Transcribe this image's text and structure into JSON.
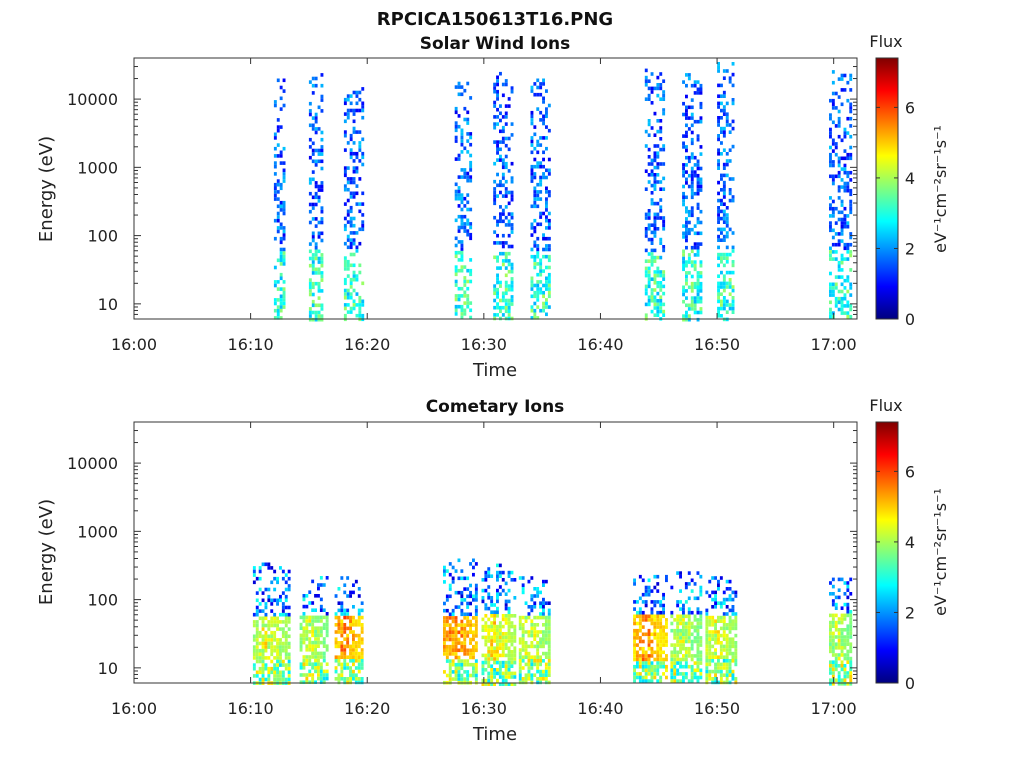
{
  "figure": {
    "title": "RPCICA150613T16.PNG"
  },
  "colorscale": [
    "#00007f",
    "#0000ff",
    "#007fff",
    "#00ffff",
    "#7fff7f",
    "#ffff00",
    "#ff7f00",
    "#ff0000",
    "#7f0000"
  ],
  "chart_data": [
    {
      "type": "heatmap",
      "title": "Solar Wind Ions",
      "xlabel": "Time",
      "ylabel": "Energy (eV)",
      "x_ticks": [
        "16:00",
        "16:10",
        "16:20",
        "16:30",
        "16:40",
        "16:50",
        "17:00"
      ],
      "x_range_minutes": [
        0,
        62
      ],
      "y_scale": "log",
      "y_ticks": [
        "10",
        "100",
        "1000",
        "10000"
      ],
      "y_range": [
        6,
        40000
      ],
      "colorbar": {
        "title": "Flux",
        "label": "eV⁻¹cm⁻²sr⁻¹s⁻¹",
        "ticks": [
          "0",
          "2",
          "4",
          "6"
        ],
        "range": [
          0,
          7.4
        ]
      },
      "bursts": [
        {
          "start_min": 12.0,
          "end_min": 13.0,
          "energy_max_ev": 20000
        },
        {
          "start_min": 15.0,
          "end_min": 16.2,
          "energy_max_ev": 24000
        },
        {
          "start_min": 18.0,
          "end_min": 19.8,
          "energy_max_ev": 15000
        },
        {
          "start_min": 27.5,
          "end_min": 29.0,
          "energy_max_ev": 18000
        },
        {
          "start_min": 30.8,
          "end_min": 32.5,
          "energy_max_ev": 25000
        },
        {
          "start_min": 34.0,
          "end_min": 35.8,
          "energy_max_ev": 20000
        },
        {
          "start_min": 43.8,
          "end_min": 45.6,
          "energy_max_ev": 28000
        },
        {
          "start_min": 47.0,
          "end_min": 48.8,
          "energy_max_ev": 24000
        },
        {
          "start_min": 50.0,
          "end_min": 51.5,
          "energy_max_ev": 35000
        },
        {
          "start_min": 59.6,
          "end_min": 61.5,
          "energy_max_ev": 30000
        }
      ]
    },
    {
      "type": "heatmap",
      "title": "Cometary Ions",
      "xlabel": "Time",
      "ylabel": "Energy (eV)",
      "x_ticks": [
        "16:00",
        "16:10",
        "16:20",
        "16:30",
        "16:40",
        "16:50",
        "17:00"
      ],
      "x_range_minutes": [
        0,
        62
      ],
      "y_scale": "log",
      "y_ticks": [
        "10",
        "100",
        "1000",
        "10000"
      ],
      "y_range": [
        6,
        40000
      ],
      "colorbar": {
        "title": "Flux",
        "label": "eV⁻¹cm⁻²sr⁻¹s⁻¹",
        "ticks": [
          "0",
          "2",
          "4",
          "6"
        ],
        "range": [
          0,
          7.4
        ]
      },
      "bursts": [
        {
          "start_min": 10.2,
          "end_min": 13.5,
          "energy_max_ev": 350,
          "peak_flux": 5.2
        },
        {
          "start_min": 14.2,
          "end_min": 16.8,
          "energy_max_ev": 250,
          "peak_flux": 5.0
        },
        {
          "start_min": 17.2,
          "end_min": 19.6,
          "energy_max_ev": 220,
          "peak_flux": 6.2
        },
        {
          "start_min": 26.5,
          "end_min": 29.5,
          "energy_max_ev": 400,
          "peak_flux": 6.3
        },
        {
          "start_min": 29.8,
          "end_min": 32.8,
          "energy_max_ev": 380,
          "peak_flux": 5.4
        },
        {
          "start_min": 33.0,
          "end_min": 35.8,
          "energy_max_ev": 220,
          "peak_flux": 5.1
        },
        {
          "start_min": 42.8,
          "end_min": 45.8,
          "energy_max_ev": 260,
          "peak_flux": 6.1
        },
        {
          "start_min": 46.0,
          "end_min": 48.8,
          "energy_max_ev": 260,
          "peak_flux": 5.0
        },
        {
          "start_min": 49.0,
          "end_min": 51.8,
          "energy_max_ev": 220,
          "peak_flux": 5.2
        },
        {
          "start_min": 59.6,
          "end_min": 61.6,
          "energy_max_ev": 210,
          "peak_flux": 5.0
        }
      ]
    }
  ]
}
